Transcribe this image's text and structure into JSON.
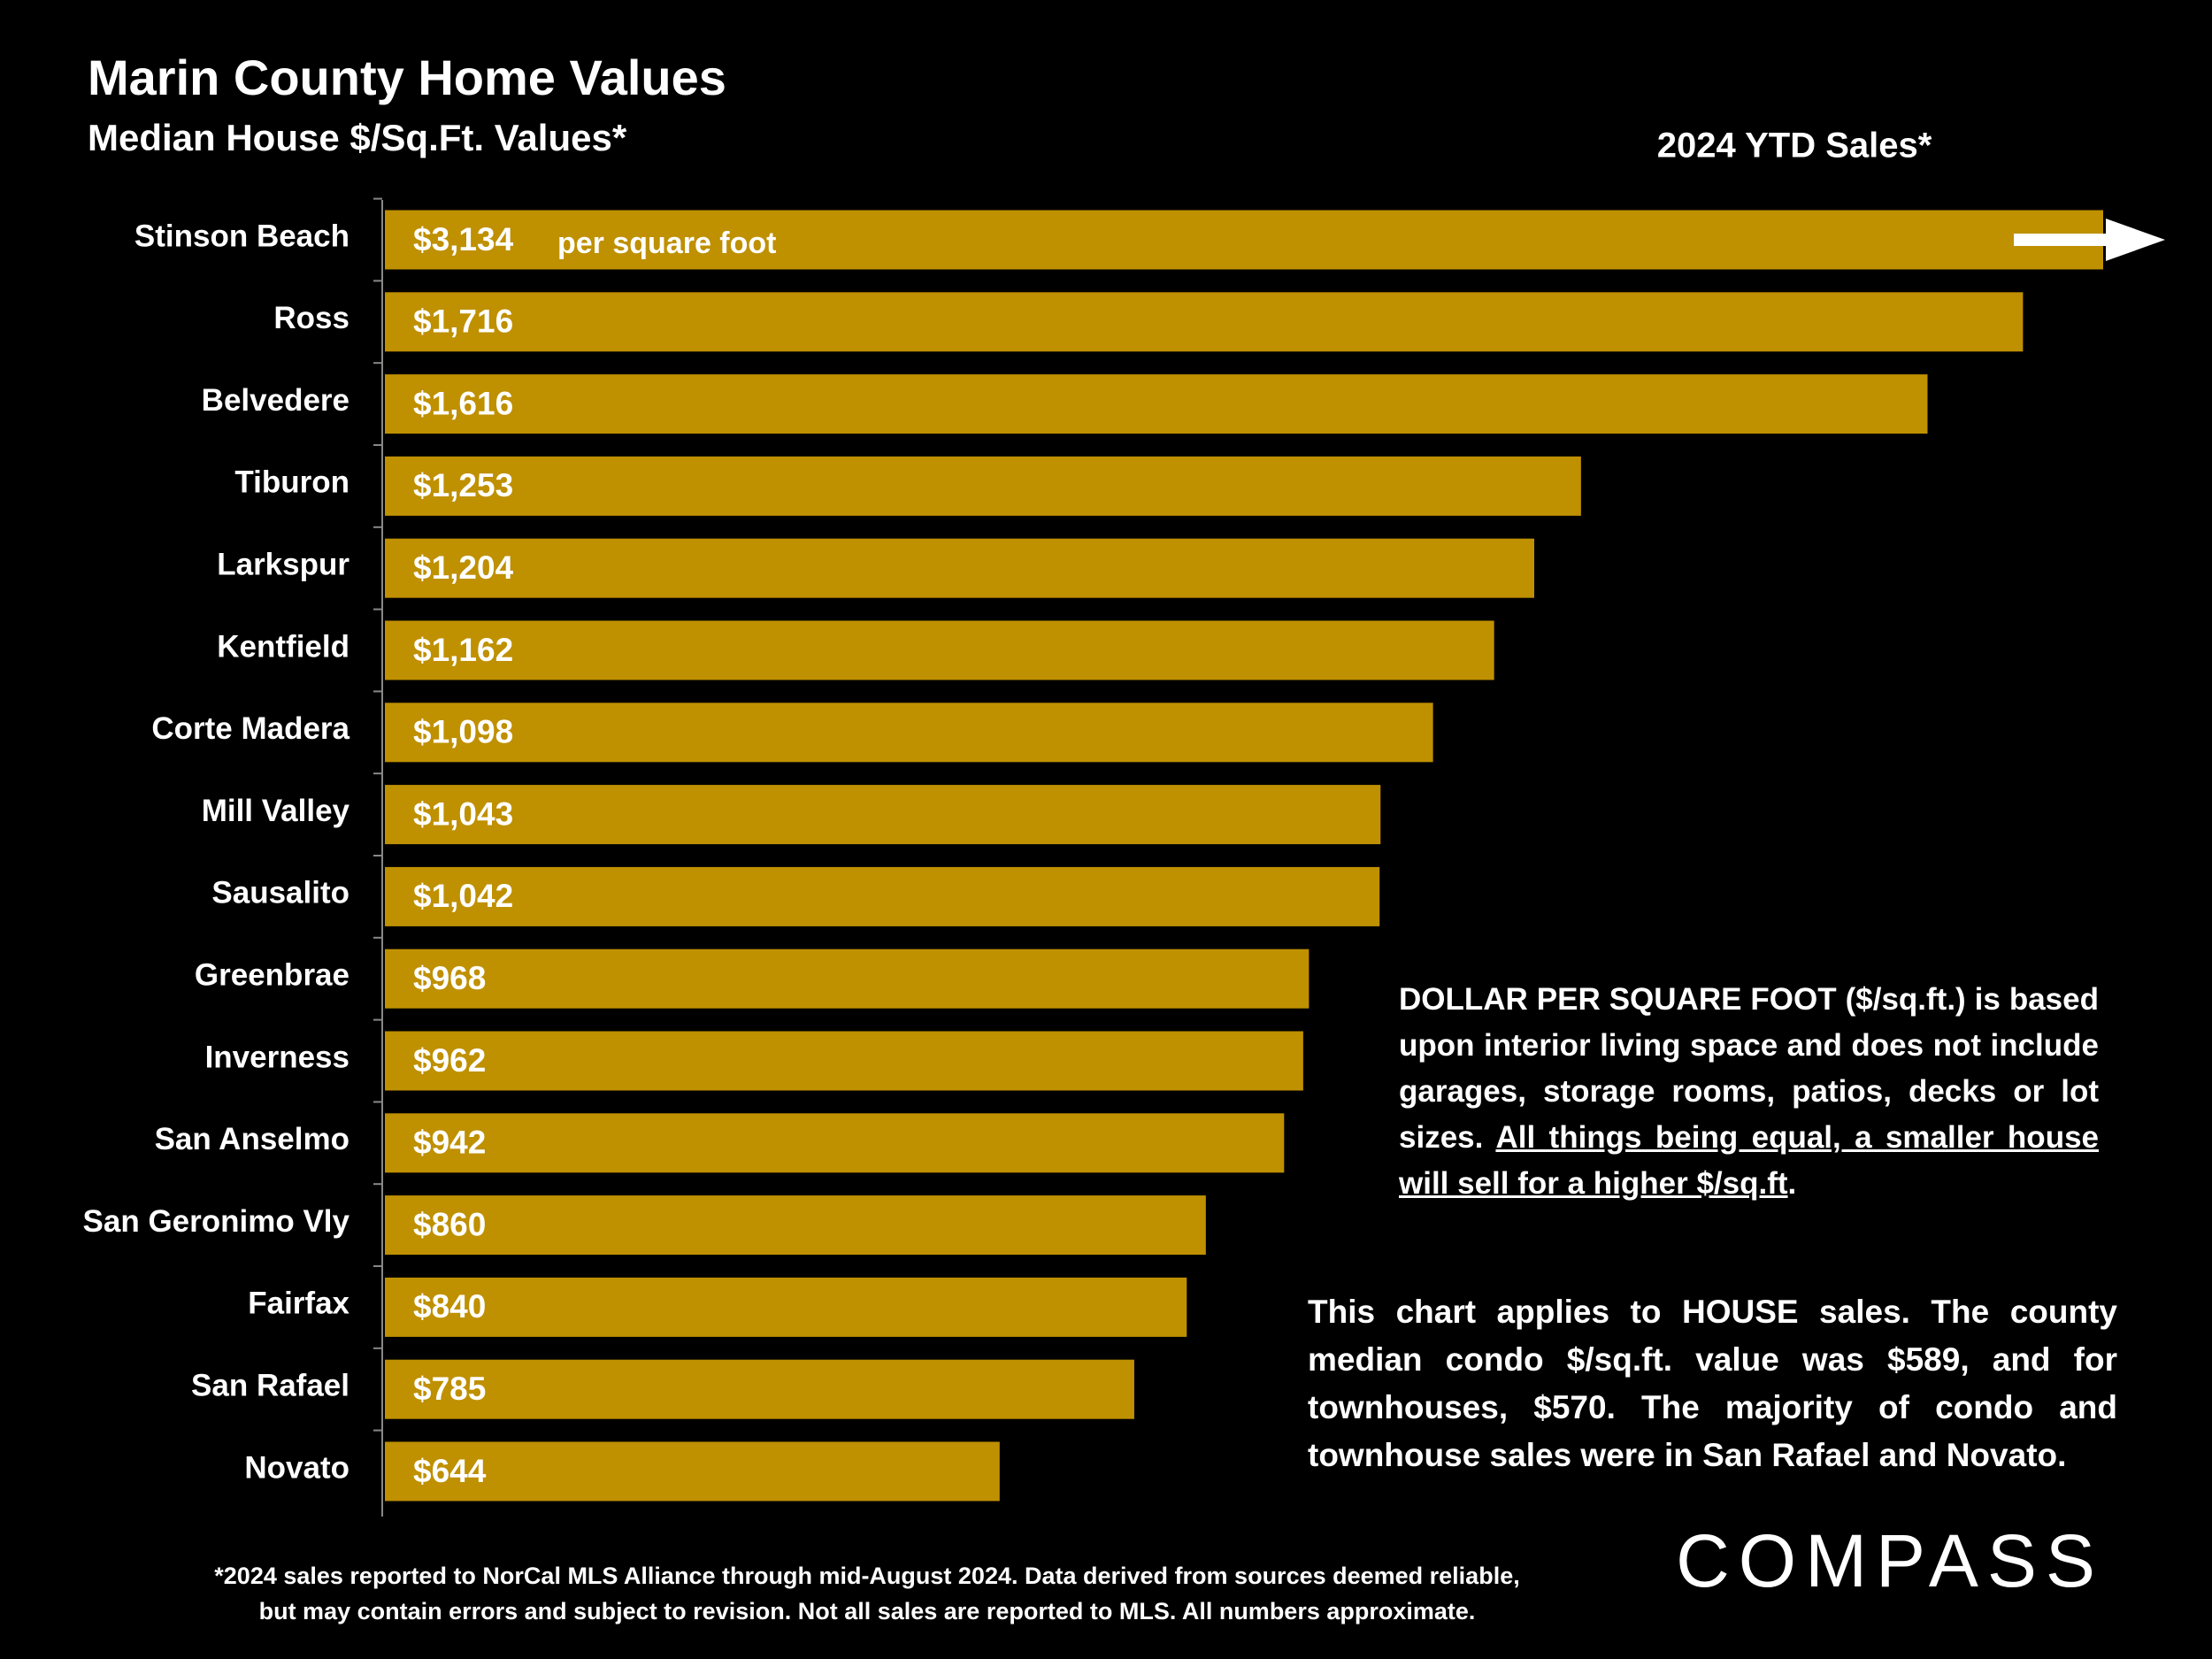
{
  "chart_data": {
    "type": "hbar",
    "title": "Marin County Home Values",
    "subtitle": "Median House $/Sq.Ft. Values*",
    "header": "2024 YTD Sales*",
    "annotation": "per square foot",
    "categories": [
      "Stinson Beach",
      "Ross",
      "Belvedere",
      "Tiburon",
      "Larkspur",
      "Kentfield",
      "Corte Madera",
      "Mill Valley",
      "Sausalito",
      "Greenbrae",
      "Inverness",
      "San Anselmo",
      "San Geronimo Vly",
      "Fairfax",
      "San Rafael",
      "Novato"
    ],
    "values": [
      3134,
      1716,
      1616,
      1253,
      1204,
      1162,
      1098,
      1043,
      1042,
      968,
      962,
      942,
      860,
      840,
      785,
      644
    ],
    "value_labels": [
      "$3,134",
      "$1,716",
      "$1,616",
      "$1,253",
      "$1,204",
      "$1,162",
      "$1,098",
      "$1,043",
      "$1,042",
      "$968",
      "$962",
      "$942",
      "$860",
      "$840",
      "$785",
      "$644"
    ],
    "color": "#bf9000",
    "xlim": [
      0,
      1800
    ],
    "note1": {
      "text": "DOLLAR PER SQUARE FOOT ($/sq.ft.) is based upon interior living space and does not include garages, storage rooms, patios, decks or lot sizes. ",
      "underlined": "All things being equal, a smaller house will sell for a higher $/sq.ft",
      "end": "."
    },
    "note2": "This chart applies to HOUSE sales. The county median condo $/sq.ft. value was $589, and for townhouses, $570. The majority of condo and townhouse sales were in San Rafael and Novato.",
    "footnote": [
      "*2024 sales reported to NorCal MLS Alliance through mid-August 2024. Data derived from sources deemed reliable,",
      "but may contain errors and subject to revision. Not all sales are reported to MLS. All numbers approximate."
    ],
    "logo": "COMPASS"
  }
}
